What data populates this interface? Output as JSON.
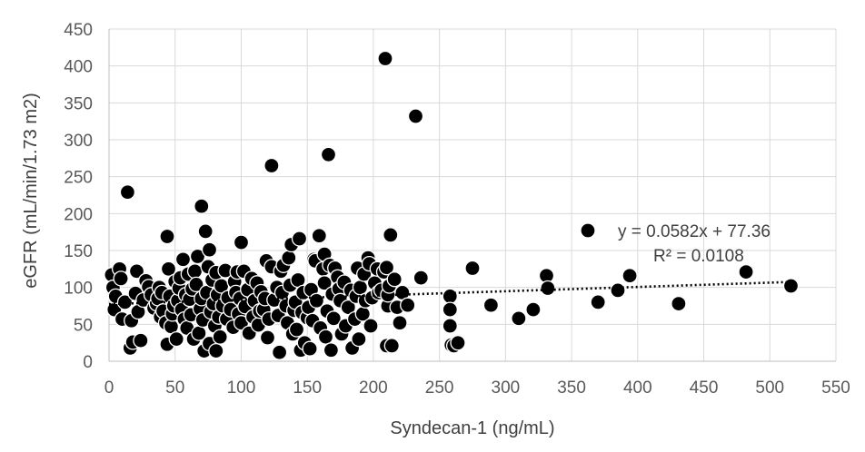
{
  "chart_data": {
    "type": "scatter",
    "xlabel": "Syndecan-1 (ng/mL)",
    "ylabel": "eGFR (mL/min/1.73 m2)",
    "xlim": [
      0,
      550
    ],
    "ylim": [
      0,
      450
    ],
    "x_ticks": [
      "0",
      "50",
      "100",
      "150",
      "200",
      "250",
      "300",
      "350",
      "400",
      "450",
      "500",
      "550"
    ],
    "y_ticks": [
      "0",
      "50",
      "100",
      "150",
      "200",
      "250",
      "300",
      "350",
      "400",
      "450"
    ],
    "grid": {
      "horizontal": true,
      "vertical": true
    },
    "legend_marker_color": "#000000",
    "trendline": {
      "type": "linear",
      "slope": 0.0582,
      "intercept": 77.36,
      "x_range": [
        0,
        517
      ],
      "equation_text": "y = 0.0582x + 77.36",
      "r2_text": "R² = 0.0108"
    },
    "series": [
      {
        "marker_color": "#000000",
        "points": [
          [
            2,
            117
          ],
          [
            3,
            100
          ],
          [
            4,
            70
          ],
          [
            5,
            88
          ],
          [
            8,
            125
          ],
          [
            9,
            112
          ],
          [
            10,
            57
          ],
          [
            12,
            80
          ],
          [
            14,
            229
          ],
          [
            16,
            18
          ],
          [
            17,
            55
          ],
          [
            18,
            26
          ],
          [
            20,
            92
          ],
          [
            21,
            122
          ],
          [
            22,
            67
          ],
          [
            24,
            28
          ],
          [
            26,
            83
          ],
          [
            28,
            109
          ],
          [
            30,
            101
          ],
          [
            32,
            90
          ],
          [
            34,
            72
          ],
          [
            36,
            78
          ],
          [
            37,
            85
          ],
          [
            38,
            100
          ],
          [
            39,
            60
          ],
          [
            40,
            93
          ],
          [
            41,
            68
          ],
          [
            43,
            52
          ],
          [
            44,
            23
          ],
          [
            44,
            169
          ],
          [
            45,
            125
          ],
          [
            46,
            88
          ],
          [
            47,
            47
          ],
          [
            48,
            64
          ],
          [
            49,
            75
          ],
          [
            50,
            108
          ],
          [
            51,
            30
          ],
          [
            52,
            82
          ],
          [
            53,
            99
          ],
          [
            54,
            113
          ],
          [
            55,
            70
          ],
          [
            56,
            138
          ],
          [
            57,
            57
          ],
          [
            58,
            90
          ],
          [
            59,
            45
          ],
          [
            60,
            118
          ],
          [
            61,
            84
          ],
          [
            62,
            63
          ],
          [
            63,
            98
          ],
          [
            64,
            30
          ],
          [
            65,
            122
          ],
          [
            66,
            104
          ],
          [
            67,
            142
          ],
          [
            68,
            38
          ],
          [
            69,
            71
          ],
          [
            70,
            210
          ],
          [
            70,
            85
          ],
          [
            71,
            56
          ],
          [
            72,
            14
          ],
          [
            73,
            176
          ],
          [
            74,
            93
          ],
          [
            75,
            128
          ],
          [
            76,
            151
          ],
          [
            76,
            24
          ],
          [
            77,
            67
          ],
          [
            78,
            110
          ],
          [
            79,
            78
          ],
          [
            80,
            48
          ],
          [
            81,
            14
          ],
          [
            81,
            120
          ],
          [
            82,
            90
          ],
          [
            83,
            60
          ],
          [
            84,
            33
          ],
          [
            85,
            102
          ],
          [
            86,
            75
          ],
          [
            88,
            123
          ],
          [
            89,
            57
          ],
          [
            90,
            86
          ],
          [
            92,
            70
          ],
          [
            94,
            46
          ],
          [
            95,
            108
          ],
          [
            96,
            93
          ],
          [
            97,
            121
          ],
          [
            98,
            64
          ],
          [
            99,
            85
          ],
          [
            100,
            161
          ],
          [
            100,
            52
          ],
          [
            102,
            122
          ],
          [
            103,
            74
          ],
          [
            105,
            97
          ],
          [
            106,
            38
          ],
          [
            108,
            112
          ],
          [
            109,
            60
          ],
          [
            110,
            82
          ],
          [
            112,
            106
          ],
          [
            113,
            49
          ],
          [
            114,
            68
          ],
          [
            115,
            94
          ],
          [
            117,
            70
          ],
          [
            118,
            85
          ],
          [
            119,
            136
          ],
          [
            120,
            32
          ],
          [
            121,
            57
          ],
          [
            123,
            265
          ],
          [
            123,
            128
          ],
          [
            125,
            83
          ],
          [
            127,
            100
          ],
          [
            128,
            62
          ],
          [
            129,
            12
          ],
          [
            130,
            122
          ],
          [
            131,
            93
          ],
          [
            132,
            130
          ],
          [
            134,
            75
          ],
          [
            135,
            52
          ],
          [
            136,
            140
          ],
          [
            137,
            103
          ],
          [
            138,
            158
          ],
          [
            139,
            37
          ],
          [
            140,
            69
          ],
          [
            141,
            80
          ],
          [
            142,
            43
          ],
          [
            143,
            110
          ],
          [
            144,
            166
          ],
          [
            145,
            15
          ],
          [
            146,
            66
          ],
          [
            147,
            93
          ],
          [
            148,
            25
          ],
          [
            150,
            59
          ],
          [
            151,
            73
          ],
          [
            152,
            17
          ],
          [
            153,
            97
          ],
          [
            154,
            55
          ],
          [
            155,
            138
          ],
          [
            156,
            136
          ],
          [
            157,
            82
          ],
          [
            159,
            170
          ],
          [
            160,
            45
          ],
          [
            162,
            125
          ],
          [
            163,
            106
          ],
          [
            163,
            145
          ],
          [
            164,
            33
          ],
          [
            165,
            68
          ],
          [
            166,
            280
          ],
          [
            167,
            130
          ],
          [
            168,
            15
          ],
          [
            169,
            91
          ],
          [
            170,
            58
          ],
          [
            171,
            126
          ],
          [
            173,
            114
          ],
          [
            174,
            98
          ],
          [
            175,
            82
          ],
          [
            176,
            37
          ],
          [
            178,
            107
          ],
          [
            179,
            48
          ],
          [
            181,
            73
          ],
          [
            183,
            96
          ],
          [
            184,
            18
          ],
          [
            186,
            57
          ],
          [
            187,
            88
          ],
          [
            188,
            126
          ],
          [
            189,
            30
          ],
          [
            190,
            100
          ],
          [
            192,
            64
          ],
          [
            193,
            118
          ],
          [
            194,
            82
          ],
          [
            196,
            140
          ],
          [
            197,
            132
          ],
          [
            198,
            48
          ],
          [
            199,
            86
          ],
          [
            201,
            106
          ],
          [
            203,
            125
          ],
          [
            204,
            93
          ],
          [
            206,
            96
          ],
          [
            208,
            121
          ],
          [
            209,
            410
          ],
          [
            210,
            127
          ],
          [
            210,
            21
          ],
          [
            211,
            75
          ],
          [
            211,
            90
          ],
          [
            212,
            102
          ],
          [
            213,
            171
          ],
          [
            214,
            21
          ],
          [
            216,
            111
          ],
          [
            218,
            73
          ],
          [
            220,
            52
          ],
          [
            222,
            93
          ],
          [
            226,
            76
          ],
          [
            232,
            332
          ],
          [
            236,
            113
          ],
          [
            258,
            88
          ],
          [
            258,
            70
          ],
          [
            258,
            48
          ],
          [
            259,
            22
          ],
          [
            261,
            21
          ],
          [
            264,
            25
          ],
          [
            275,
            126
          ],
          [
            289,
            76
          ],
          [
            310,
            58
          ],
          [
            321,
            70
          ],
          [
            331,
            116
          ],
          [
            332,
            99
          ],
          [
            362,
            178
          ],
          [
            370,
            80
          ],
          [
            385,
            96
          ],
          [
            394,
            116
          ],
          [
            431,
            78
          ],
          [
            482,
            121
          ],
          [
            516,
            102
          ]
        ]
      }
    ]
  }
}
